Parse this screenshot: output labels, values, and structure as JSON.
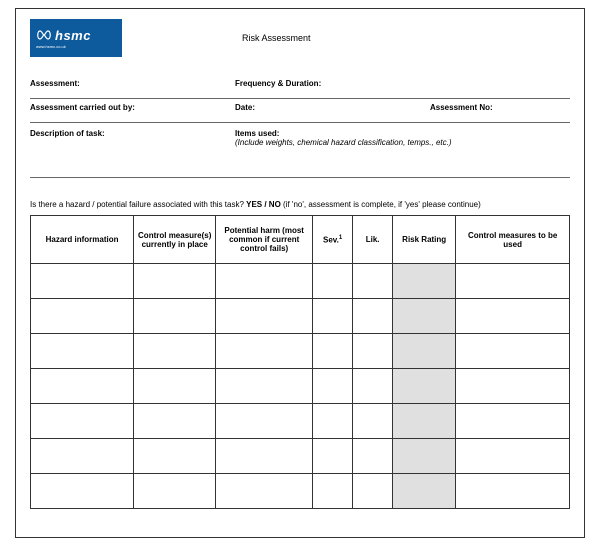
{
  "logo": {
    "brand": "hsmc",
    "tagline": "www.hsmc.co.uk"
  },
  "title": "Risk Assessment",
  "meta": {
    "assessment": "Assessment:",
    "frequency": "Frequency & Duration:",
    "carriedOut": "Assessment carried out by:",
    "date": "Date:",
    "assessmentNo": "Assessment No:",
    "descTask": "Description of task:",
    "itemsUsed": "Items used:",
    "itemsNote": "(Include weights, chemical hazard classification, temps., etc.)"
  },
  "question": {
    "text": "Is there a hazard / potential failure associated with this task?  ",
    "yesno": "YES / NO",
    "hint": " (if 'no', assessment is complete, if 'yes' please continue)"
  },
  "columns": {
    "hazard": "Hazard information",
    "control": "Control measure(s) currently in place",
    "harm": "Potential harm (most common if current control fails)",
    "sev": "Sev.",
    "sevSup": "1",
    "lik": "Lik.",
    "risk": "Risk Rating",
    "measures": "Control measures to be used"
  },
  "rowCount": 7,
  "colors": {
    "logoBg": "#0d5a9c",
    "border": "#333333",
    "shaded": "#e0e0e0"
  }
}
